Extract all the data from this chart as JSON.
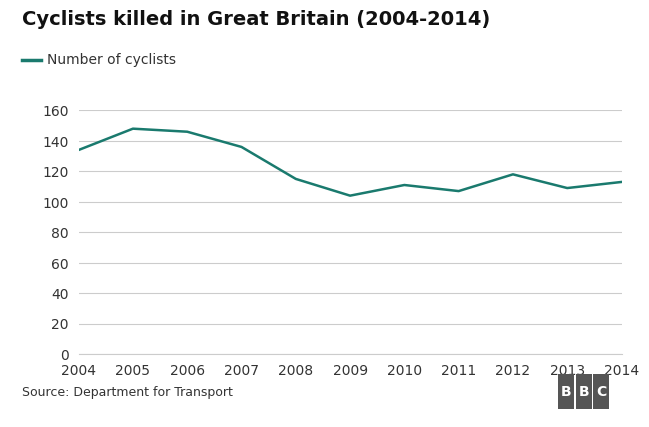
{
  "title": "Cyclists killed in Great Britain (2004-2014)",
  "legend_label": "Number of cyclists",
  "years": [
    2004,
    2005,
    2006,
    2007,
    2008,
    2009,
    2010,
    2011,
    2012,
    2013,
    2014
  ],
  "values": [
    134,
    148,
    146,
    136,
    115,
    104,
    111,
    107,
    118,
    109,
    113
  ],
  "line_color": "#1a7a6e",
  "figure_background": "#ffffff",
  "plot_background": "#ffffff",
  "grid_color": "#cccccc",
  "footer_background": "#e8e8e8",
  "source_text": "Source: Department for Transport",
  "bbc_text": "BBC",
  "ylim": [
    0,
    160
  ],
  "yticks": [
    0,
    20,
    40,
    60,
    80,
    100,
    120,
    140,
    160
  ],
  "title_fontsize": 14,
  "axis_fontsize": 10,
  "legend_fontsize": 10,
  "source_fontsize": 9,
  "line_width": 1.8
}
